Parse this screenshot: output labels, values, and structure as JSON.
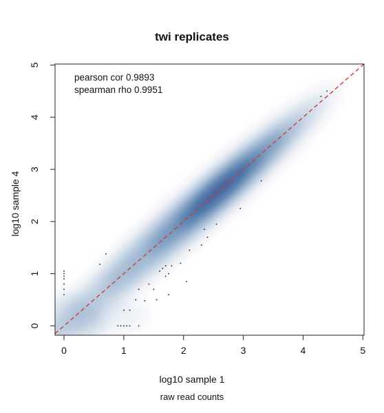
{
  "chart_data": {
    "type": "scatter",
    "subtype": "smoothed density scatter",
    "title": "twi replicates",
    "xlabel": "log10 sample 1",
    "ylabel": "log10 sample 4",
    "caption": "raw read counts",
    "xlim": [
      -0.15,
      5.02
    ],
    "ylim": [
      -0.18,
      5.02
    ],
    "xticks": [
      0,
      1,
      2,
      3,
      4,
      5
    ],
    "yticks": [
      0,
      1,
      2,
      3,
      4,
      5
    ],
    "annotations": [
      "pearson cor 0.9893",
      "spearman rho 0.9951"
    ],
    "reference_line": {
      "type": "identity",
      "slope": 1,
      "intercept": 0,
      "style": "dashed",
      "color": "#d43a2f"
    },
    "density_color": "#0a3f86",
    "grid": false,
    "outlier_points": [
      [
        0,
        0.6
      ],
      [
        0,
        0.7
      ],
      [
        0,
        0.8
      ],
      [
        0,
        0.9
      ],
      [
        0,
        0.95
      ],
      [
        0,
        1.0
      ],
      [
        0,
        1.05
      ],
      [
        0.6,
        1.18
      ],
      [
        0.7,
        1.38
      ],
      [
        0.9,
        0
      ],
      [
        0.95,
        0
      ],
      [
        1.0,
        0
      ],
      [
        1.05,
        0
      ],
      [
        1.1,
        0
      ],
      [
        1.25,
        0
      ],
      [
        1.0,
        0.3
      ],
      [
        1.1,
        0.3
      ],
      [
        1.2,
        0.5
      ],
      [
        1.25,
        0.7
      ],
      [
        1.35,
        0.48
      ],
      [
        1.42,
        0.8
      ],
      [
        1.5,
        0.7
      ],
      [
        1.55,
        0.5
      ],
      [
        1.6,
        1.05
      ],
      [
        1.65,
        1.1
      ],
      [
        1.7,
        1.15
      ],
      [
        1.75,
        1.0
      ],
      [
        1.8,
        1.15
      ],
      [
        1.7,
        0.95
      ],
      [
        1.75,
        0.6
      ],
      [
        1.95,
        1.2
      ],
      [
        2.05,
        0.85
      ],
      [
        2.1,
        1.45
      ],
      [
        2.3,
        1.55
      ],
      [
        2.35,
        1.85
      ],
      [
        2.4,
        1.7
      ],
      [
        2.55,
        1.95
      ],
      [
        2.95,
        2.25
      ],
      [
        3.3,
        2.78
      ],
      [
        4.3,
        4.4
      ],
      [
        4.4,
        4.5
      ]
    ]
  }
}
